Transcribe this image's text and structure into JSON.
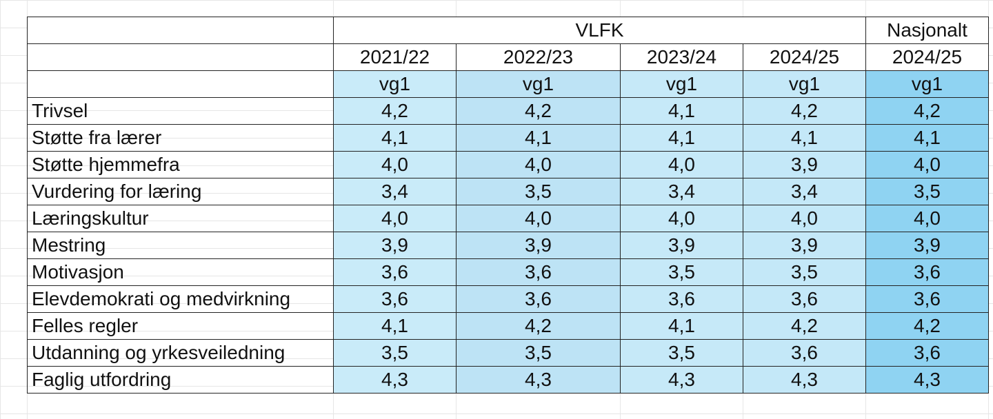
{
  "header": {
    "group_vlfk": "VLFK",
    "group_national": "Nasjonalt",
    "years": [
      "2021/22",
      "2022/23",
      "2023/24",
      "2024/25",
      "2024/25"
    ],
    "level": [
      "vg1",
      "vg1",
      "vg1",
      "vg1",
      "vg1"
    ]
  },
  "rows": [
    {
      "label": "Trivsel",
      "values": [
        "4,2",
        "4,2",
        "4,1",
        "4,2",
        "4,2"
      ]
    },
    {
      "label": "Støtte fra lærer",
      "values": [
        "4,1",
        "4,1",
        "4,1",
        "4,1",
        "4,1"
      ]
    },
    {
      "label": "Støtte hjemmefra",
      "values": [
        "4,0",
        "4,0",
        "4,0",
        "3,9",
        "4,0"
      ]
    },
    {
      "label": "Vurdering for læring",
      "values": [
        "3,4",
        "3,5",
        "3,4",
        "3,4",
        "3,5"
      ]
    },
    {
      "label": "Læringskultur",
      "values": [
        "4,0",
        "4,0",
        "4,0",
        "4,0",
        "4,0"
      ]
    },
    {
      "label": "Mestring",
      "values": [
        "3,9",
        "3,9",
        "3,9",
        "3,9",
        "3,9"
      ]
    },
    {
      "label": "Motivasjon",
      "values": [
        "3,6",
        "3,6",
        "3,5",
        "3,5",
        "3,6"
      ]
    },
    {
      "label": "Elevdemokrati og medvirkning",
      "values": [
        "3,6",
        "3,6",
        "3,6",
        "3,6",
        "3,6"
      ]
    },
    {
      "label": "Felles regler",
      "values": [
        "4,1",
        "4,2",
        "4,1",
        "4,2",
        "4,2"
      ]
    },
    {
      "label": "Utdanning og yrkesveiledning",
      "values": [
        "3,5",
        "3,5",
        "3,5",
        "3,6",
        "3,6"
      ]
    },
    {
      "label": "Faglig utfordring",
      "values": [
        "4,3",
        "4,3",
        "4,3",
        "4,3",
        "4,3"
      ]
    }
  ],
  "colors": {
    "col1": "#c9ebf9",
    "col2": "#bde3f5",
    "col3": "#c6e9f8",
    "col4": "#c4e8f8",
    "national": "#8fd3f2"
  }
}
